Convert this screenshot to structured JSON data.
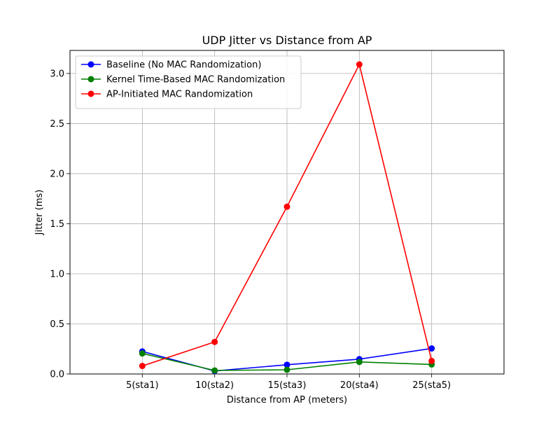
{
  "chart_data": {
    "type": "line",
    "title": "UDP Jitter vs Distance from AP",
    "xlabel": "Distance from AP (meters)",
    "ylabel": "Jitter (ms)",
    "categories": [
      "5(sta1)",
      "10(sta2)",
      "15(sta3)",
      "20(sta4)",
      "25(sta5)"
    ],
    "x_range": [
      0,
      6
    ],
    "ylim": [
      0,
      3.23
    ],
    "yticks": [
      "0.0",
      "0.5",
      "1.0",
      "1.5",
      "2.0",
      "2.5",
      "3.0"
    ],
    "grid": true,
    "legend_position": "upper-left",
    "series": [
      {
        "name": "Baseline (No MAC Randomization)",
        "color": "#0000ff",
        "values": [
          0.225,
          0.03,
          0.092,
          0.148,
          0.255
        ]
      },
      {
        "name": "Kernel Time-Based MAC Randomization",
        "color": "#008000",
        "values": [
          0.205,
          0.035,
          0.042,
          0.12,
          0.095
        ]
      },
      {
        "name": "AP-Initiated MAC Randomization",
        "color": "#ff0000",
        "values": [
          0.08,
          0.32,
          1.67,
          3.09,
          0.13
        ]
      }
    ]
  }
}
